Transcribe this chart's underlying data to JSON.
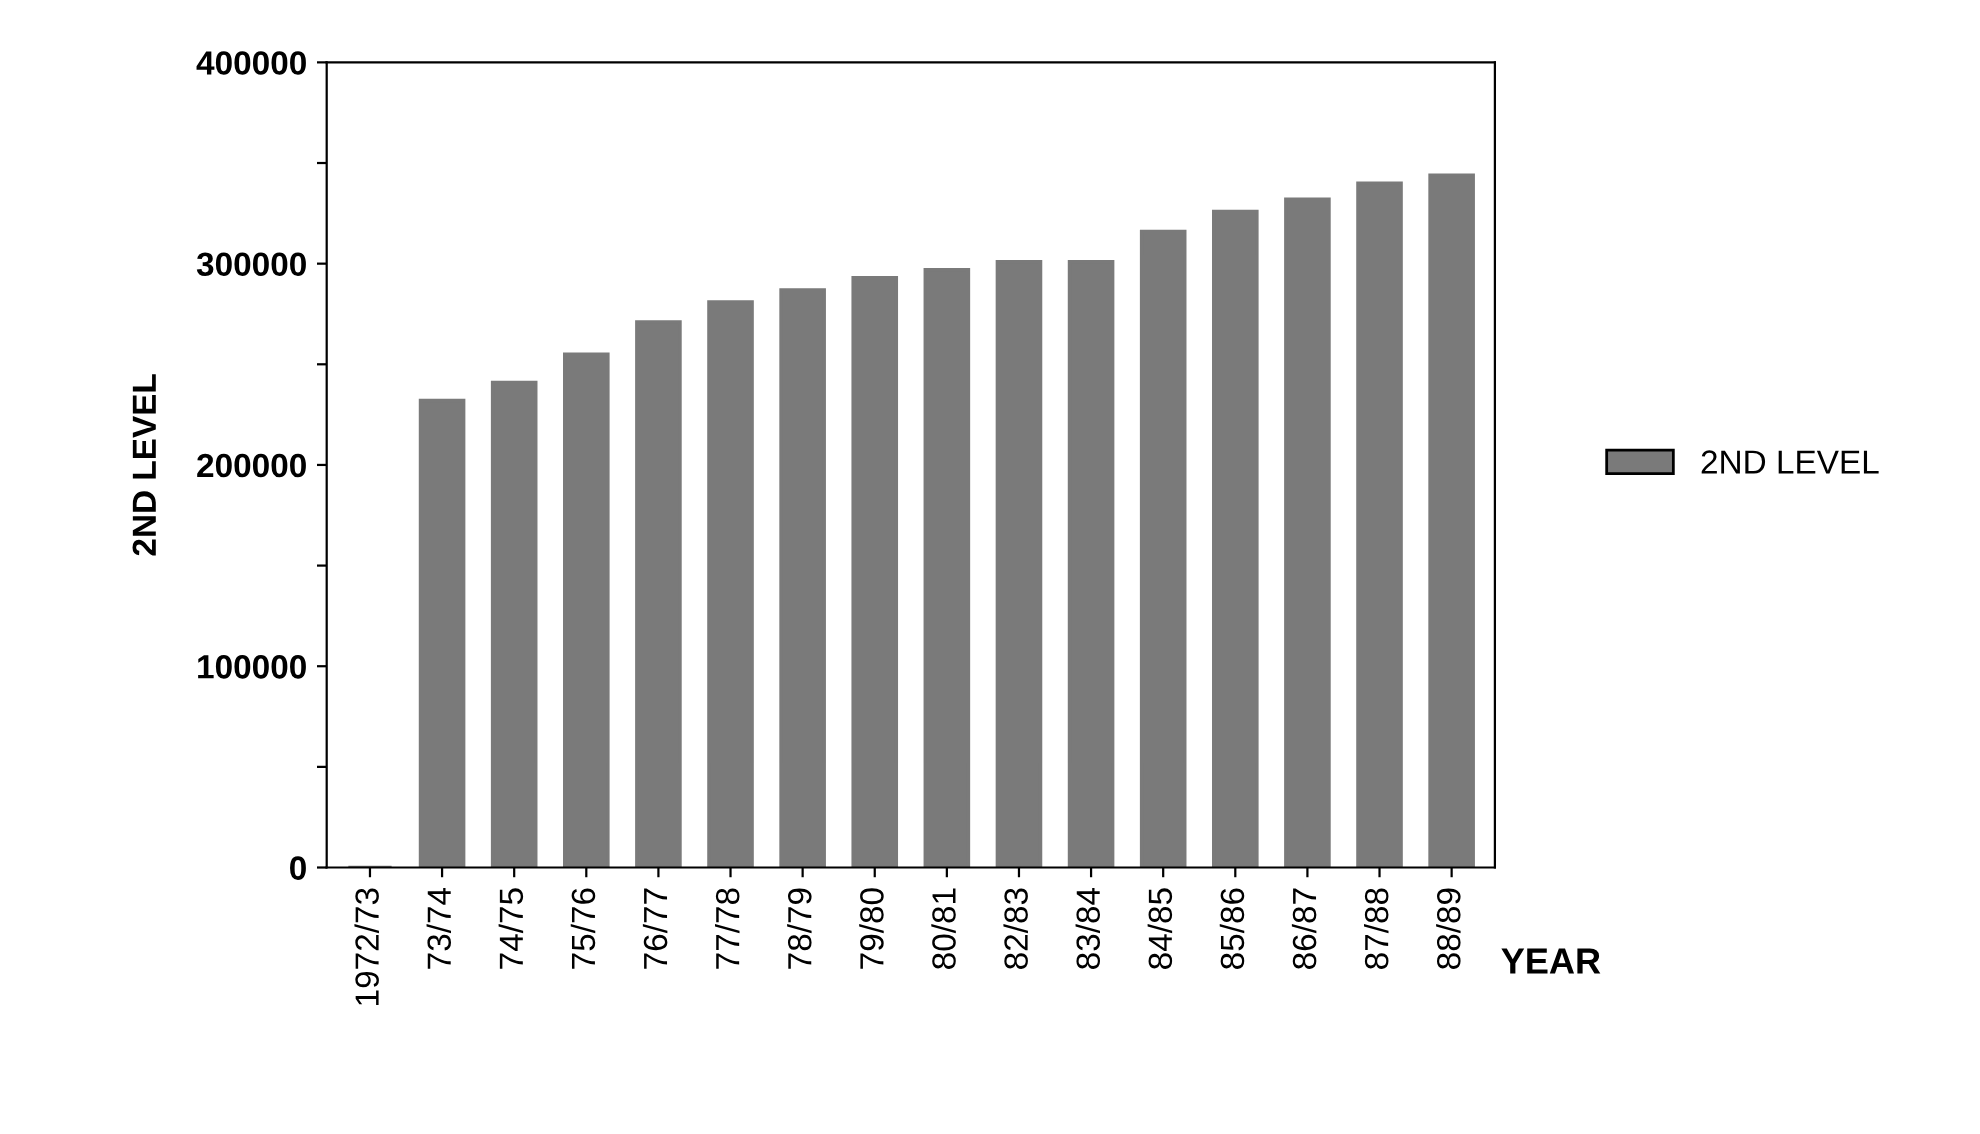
{
  "chart_data": {
    "type": "bar",
    "xlabel": "YEAR",
    "ylabel": "2ND LEVEL",
    "categories": [
      "1972/73",
      "73/74",
      "74/75",
      "75/76",
      "76/77",
      "77/78",
      "78/79",
      "79/80",
      "80/81",
      "82/83",
      "83/84",
      "84/85",
      "85/86",
      "86/87",
      "87/88",
      "88/89"
    ],
    "series": [
      {
        "name": "2ND LEVEL",
        "color": "#7a7a7a",
        "values": [
          0,
          232000,
          241000,
          255000,
          271000,
          281000,
          287000,
          293000,
          297000,
          301000,
          301000,
          316000,
          326000,
          332000,
          340000,
          344000
        ]
      }
    ],
    "ylim": [
      0,
      400000
    ],
    "yticks": [
      0,
      {
        "value": 50000,
        "label": null
      },
      100000,
      {
        "value": 150000,
        "label": null
      },
      200000,
      {
        "value": 250000,
        "label": null
      },
      300000,
      {
        "value": 350000,
        "label": null
      },
      400000
    ],
    "grid": false,
    "legend": "right"
  }
}
